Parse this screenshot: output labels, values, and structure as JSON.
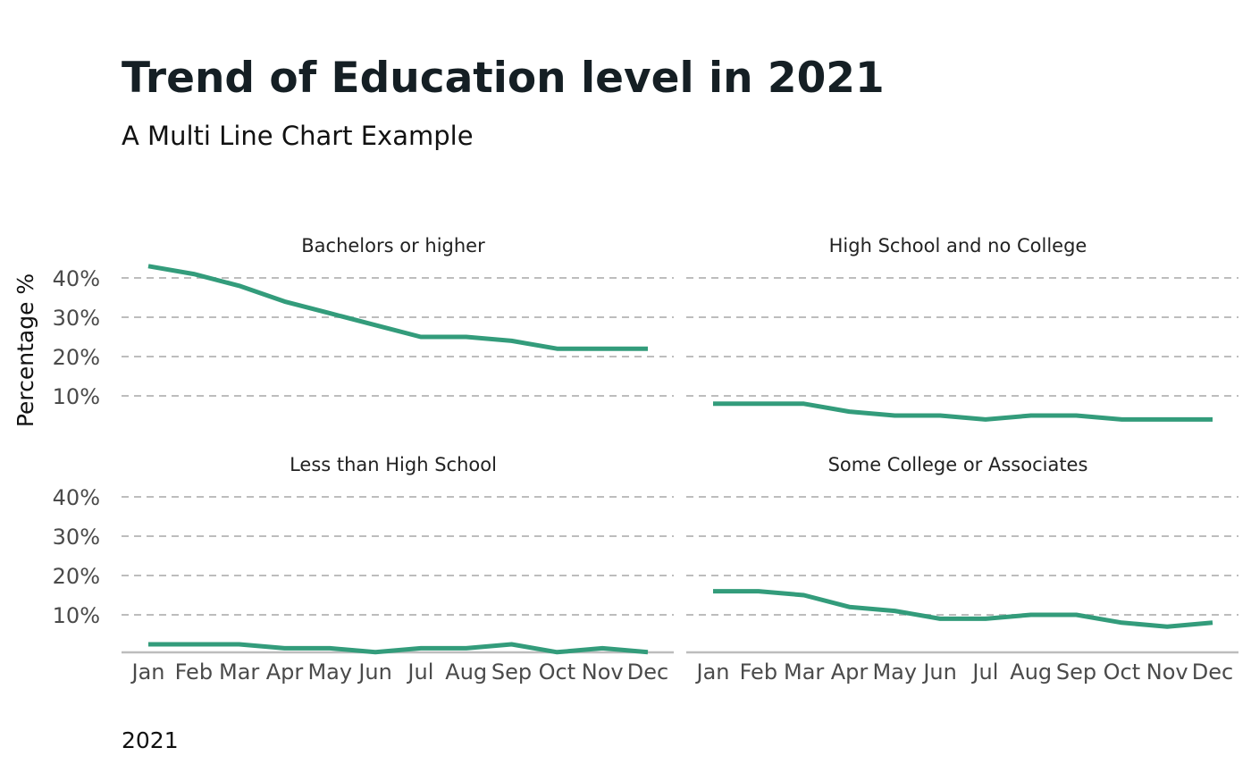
{
  "chart_data": {
    "type": "line",
    "title": "Trend of Education level in 2021",
    "subtitle": "A Multi Line Chart Example",
    "ylabel": "Percentage %",
    "caption": "2021",
    "categories": [
      "Jan",
      "Feb",
      "Mar",
      "Apr",
      "May",
      "Jun",
      "Jul",
      "Aug",
      "Sep",
      "Oct",
      "Nov",
      "Dec"
    ],
    "y_ticks": [
      10,
      20,
      30,
      40
    ],
    "y_tick_labels": [
      "10%",
      "20%",
      "30%",
      "40%"
    ],
    "ylim": [
      0,
      45
    ],
    "grid": "horizontal-dashed",
    "line_color": "#339c7b",
    "grid_color": "#bdbdbd",
    "facets": [
      {
        "name": "Bachelors or higher",
        "values": [
          43,
          41,
          38,
          34,
          31,
          28,
          25,
          25,
          24,
          22,
          22,
          22
        ]
      },
      {
        "name": "High School and no College",
        "values": [
          8,
          8,
          8,
          6,
          5,
          5,
          4,
          5,
          5,
          4,
          4,
          4
        ]
      },
      {
        "name": "Less than High School",
        "values": [
          2.5,
          2.5,
          2.5,
          1.5,
          1.5,
          0.5,
          1.5,
          1.5,
          2.5,
          0.5,
          1.5,
          0.5
        ]
      },
      {
        "name": "Some College or Associates",
        "values": [
          16,
          16,
          15,
          12,
          11,
          9,
          9,
          10,
          10,
          8,
          7,
          8
        ]
      }
    ]
  }
}
